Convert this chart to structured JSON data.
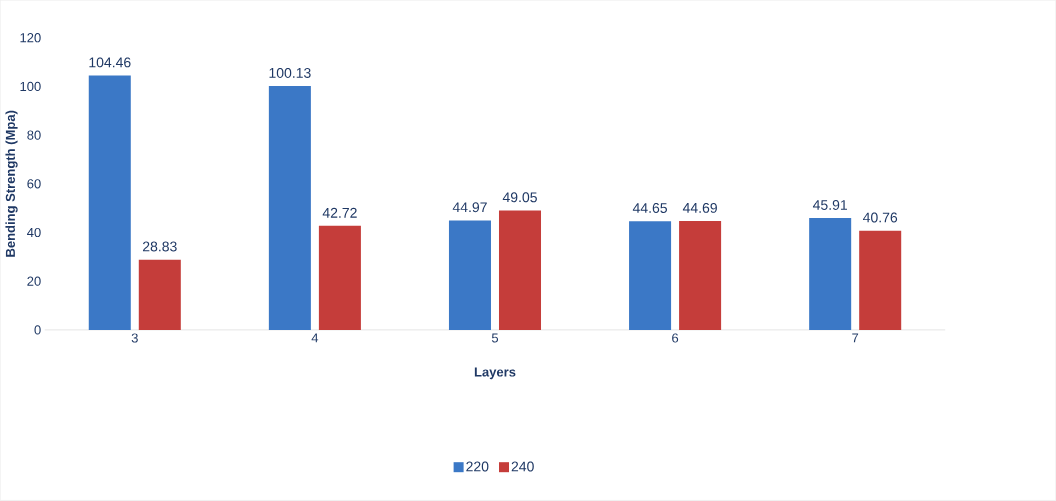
{
  "chart_data": {
    "type": "bar",
    "xlabel": "Layers",
    "ylabel": "Bending Strength (Mpa)",
    "categories": [
      "3",
      "4",
      "5",
      "6",
      "7"
    ],
    "series": [
      {
        "name": "220",
        "color": "#3b78c6",
        "values": [
          104.46,
          100.13,
          44.97,
          44.65,
          45.91
        ]
      },
      {
        "name": "240",
        "color": "#c53d3a",
        "values": [
          28.83,
          42.72,
          49.05,
          44.69,
          40.76
        ]
      }
    ],
    "ylim": [
      0,
      120
    ],
    "yticks": [
      0,
      20,
      40,
      60,
      80,
      100,
      120
    ],
    "data_labels": true,
    "legend": "bottom",
    "grid": false
  }
}
